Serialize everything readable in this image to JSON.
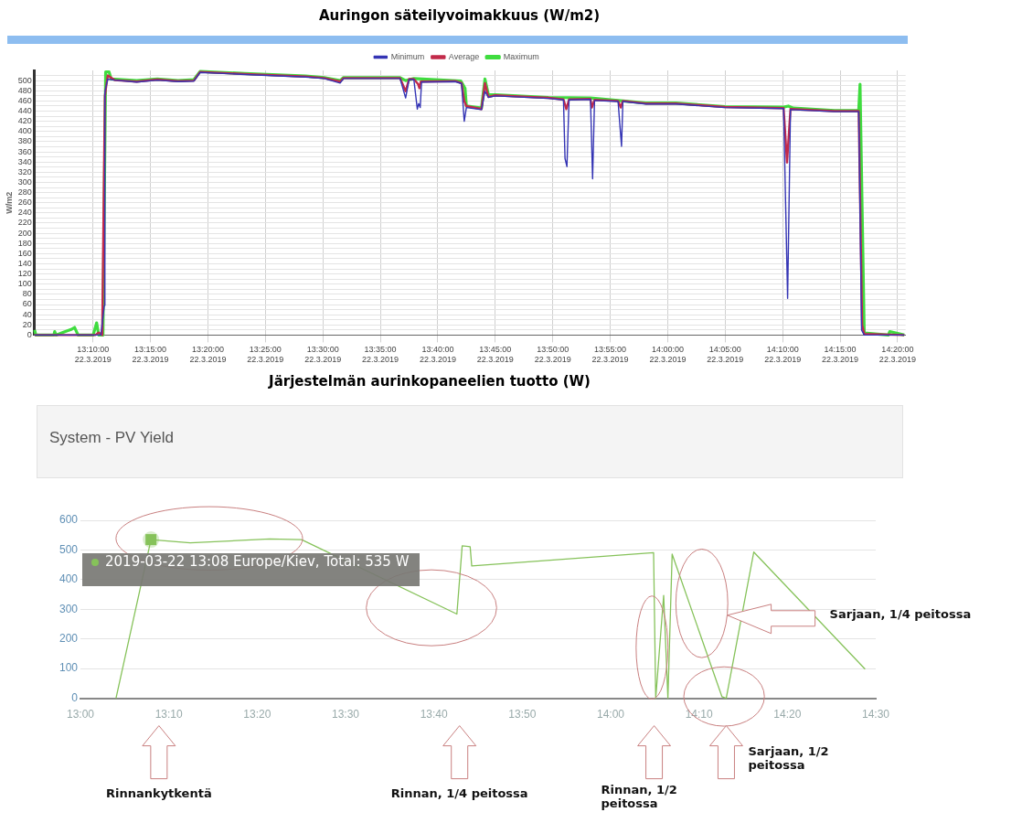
{
  "chart_data": [
    {
      "type": "line",
      "title": "Auringon säteilyvoimakkuus (W/m2)",
      "ylabel": "W/m2",
      "legend": "top",
      "grid": true,
      "marker": "none",
      "xlim": [
        "2019-03-22T13:04:55",
        "2019-03-22T14:20:42"
      ],
      "ylim": [
        0,
        520
      ],
      "xticks": [
        {
          "value": "2019-03-22T13:10",
          "label": "13:10:00\n22.3.2019"
        },
        {
          "value": "2019-03-22T13:15",
          "label": "13:15:00\n22.3.2019"
        },
        {
          "value": "2019-03-22T13:20",
          "label": "13:20:00\n22.3.2019"
        },
        {
          "value": "2019-03-22T13:25",
          "label": "13:25:00\n22.3.2019"
        },
        {
          "value": "2019-03-22T13:30",
          "label": "13:30:00\n22.3.2019"
        },
        {
          "value": "2019-03-22T13:35",
          "label": "13:35:00\n22.3.2019"
        },
        {
          "value": "2019-03-22T13:40",
          "label": "13:40:00\n22.3.2019"
        },
        {
          "value": "2019-03-22T13:45",
          "label": "13:45:00\n22.3.2019"
        },
        {
          "value": "2019-03-22T13:50",
          "label": "13:50:00\n22.3.2019"
        },
        {
          "value": "2019-03-22T13:55",
          "label": "13:55:00\n22.3.2019"
        },
        {
          "value": "2019-03-22T14:00",
          "label": "14:00:00\n22.3.2019"
        },
        {
          "value": "2019-03-22T14:05",
          "label": "14:05:00\n22.3.2019"
        },
        {
          "value": "2019-03-22T14:10",
          "label": "14:10:00\n22.3.2019"
        },
        {
          "value": "2019-03-22T14:15",
          "label": "14:15:00\n22.3.2019"
        },
        {
          "value": "2019-03-22T14:20",
          "label": "14:20:00\n22.3.2019"
        }
      ],
      "yticks": [
        0,
        {
          "value": 10,
          "label": null
        },
        20,
        {
          "value": 30,
          "label": null
        },
        40,
        {
          "value": 50,
          "label": null
        },
        60,
        {
          "value": 70,
          "label": null
        },
        80,
        {
          "value": 90,
          "label": null
        },
        100,
        {
          "value": 110,
          "label": null
        },
        120,
        {
          "value": 130,
          "label": null
        },
        140,
        {
          "value": 150,
          "label": null
        },
        160,
        {
          "value": 170,
          "label": null
        },
        180,
        {
          "value": 190,
          "label": null
        },
        200,
        {
          "value": 210,
          "label": null
        },
        220,
        {
          "value": 230,
          "label": null
        },
        240,
        {
          "value": 250,
          "label": null
        },
        260,
        {
          "value": 270,
          "label": null
        },
        280,
        {
          "value": 290,
          "label": null
        },
        300,
        {
          "value": 310,
          "label": null
        },
        320,
        {
          "value": 330,
          "label": null
        },
        340,
        {
          "value": 350,
          "label": null
        },
        360,
        {
          "value": 370,
          "label": null
        },
        380,
        {
          "value": 390,
          "label": null
        },
        400,
        {
          "value": 410,
          "label": null
        },
        420,
        {
          "value": 430,
          "label": null
        },
        440,
        {
          "value": 450,
          "label": null
        },
        460,
        {
          "value": 470,
          "label": null
        },
        480,
        {
          "value": 490,
          "label": null
        },
        500,
        {
          "value": 510,
          "label": null
        }
      ],
      "series": [
        {
          "name": "Minimum",
          "color": "#3434b4",
          "x": [
            "2019-03-22T13:04:55",
            "2019-03-22T13:10:41",
            "2019-03-22T13:10:59",
            "2019-03-22T13:11:02",
            "2019-03-22T13:11:17",
            "2019-03-22T13:11:53",
            "2019-03-22T13:13:48",
            "2019-03-22T13:15:36",
            "2019-03-22T13:17:24",
            "2019-03-22T13:18:47",
            "2019-03-22T13:19:19",
            "2019-03-22T13:23:13",
            "2019-03-22T13:28:30",
            "2019-03-22T13:30:07",
            "2019-03-22T13:31:30",
            "2019-03-22T13:31:48",
            "2019-03-22T13:36:43",
            "2019-03-22T13:37:12",
            "2019-03-22T13:37:30",
            "2019-03-22T13:37:55",
            "2019-03-22T13:38:13",
            "2019-03-22T13:38:20",
            "2019-03-22T13:38:28",
            "2019-03-22T13:38:35",
            "2019-03-22T13:41:31",
            "2019-03-22T13:42:04",
            "2019-03-22T13:42:18",
            "2019-03-22T13:42:29",
            "2019-03-22T13:43:48",
            "2019-03-22T13:44:06",
            "2019-03-22T13:44:24",
            "2019-03-22T13:45:00",
            "2019-03-22T13:49:37",
            "2019-03-22T13:50:56",
            "2019-03-22T13:51:04",
            "2019-03-22T13:51:14",
            "2019-03-22T13:51:25",
            "2019-03-22T13:53:17",
            "2019-03-22T13:53:28",
            "2019-03-22T13:53:38",
            "2019-03-22T13:55:41",
            "2019-03-22T13:55:59",
            "2019-03-22T13:56:06",
            "2019-03-22T13:58:05",
            "2019-03-22T14:00:43",
            "2019-03-22T14:04:59",
            "2019-03-22T14:10:05",
            "2019-03-22T14:10:26",
            "2019-03-22T14:10:41",
            "2019-03-22T14:14:31",
            "2019-03-22T14:16:37",
            "2019-03-22T14:16:52",
            "2019-03-22T14:17:06",
            "2019-03-22T14:20:35"
          ],
          "values": [
            0,
            0,
            58,
            477,
            503,
            501,
            497,
            501,
            498,
            499,
            516,
            512,
            507,
            504,
            495,
            504,
            504,
            466,
            502,
            502,
            444,
            455,
            447,
            497,
            498,
            494,
            420,
            447,
            443,
            479,
            467,
            470,
            465,
            462,
            347,
            331,
            462,
            463,
            307,
            461,
            459,
            371,
            459,
            454,
            454,
            447,
            445,
            72,
            443,
            439,
            439,
            10,
            0,
            0
          ]
        },
        {
          "name": "Maximum",
          "color": "#3fdc3f",
          "x": [
            "2019-03-22T13:04:55",
            "2019-03-22T13:05:02",
            "2019-03-22T13:06:36",
            "2019-03-22T13:06:40",
            "2019-03-22T13:06:47",
            "2019-03-22T13:07:23",
            "2019-03-22T13:08:06",
            "2019-03-22T13:08:24",
            "2019-03-22T13:08:42",
            "2019-03-22T13:10:01",
            "2019-03-22T13:10:19",
            "2019-03-22T13:10:30",
            "2019-03-22T13:10:52",
            "2019-03-22T13:11:06",
            "2019-03-22T13:11:24",
            "2019-03-22T13:11:35",
            "2019-03-22T13:13:48",
            "2019-03-22T13:15:36",
            "2019-03-22T13:17:24",
            "2019-03-22T13:18:47",
            "2019-03-22T13:19:19",
            "2019-03-22T13:23:13",
            "2019-03-22T13:28:30",
            "2019-03-22T13:30:07",
            "2019-03-22T13:31:30",
            "2019-03-22T13:31:48",
            "2019-03-22T13:36:43",
            "2019-03-22T13:37:12",
            "2019-03-22T13:37:55",
            "2019-03-22T13:42:00",
            "2019-03-22T13:42:22",
            "2019-03-22T13:42:29",
            "2019-03-22T13:43:48",
            "2019-03-22T13:44:06",
            "2019-03-22T13:44:24",
            "2019-03-22T13:45:00",
            "2019-03-22T13:49:37",
            "2019-03-22T13:53:17",
            "2019-03-22T13:58:05",
            "2019-03-22T14:00:43",
            "2019-03-22T14:04:59",
            "2019-03-22T14:10:05",
            "2019-03-22T14:10:30",
            "2019-03-22T14:10:55",
            "2019-03-22T14:14:31",
            "2019-03-22T14:16:37",
            "2019-03-22T14:16:44",
            "2019-03-22T14:17:06",
            "2019-03-22T14:19:12",
            "2019-03-22T14:19:19",
            "2019-03-22T14:20:35"
          ],
          "values": [
            10,
            0,
            0,
            7,
            0,
            5,
            11,
            15,
            0,
            0,
            24,
            0,
            0,
            517,
            517,
            503,
            500,
            503,
            500,
            502,
            518,
            514,
            509,
            506,
            500,
            506,
            506,
            500,
            504,
            499,
            485,
            450,
            446,
            503,
            472,
            472,
            467,
            466,
            456,
            456,
            449,
            448,
            450,
            446,
            441,
            441,
            493,
            4,
            0,
            7,
            0
          ]
        },
        {
          "name": "Average",
          "color": "#c22a4a",
          "x": [
            "2019-03-22T13:04:55",
            "2019-03-22T13:10:12",
            "2019-03-22T13:10:30",
            "2019-03-22T13:10:48",
            "2019-03-22T13:11:02",
            "2019-03-22T13:11:17",
            "2019-03-22T13:11:53",
            "2019-03-22T13:13:48",
            "2019-03-22T13:15:36",
            "2019-03-22T13:17:24",
            "2019-03-22T13:18:47",
            "2019-03-22T13:19:19",
            "2019-03-22T13:23:13",
            "2019-03-22T13:28:30",
            "2019-03-22T13:30:07",
            "2019-03-22T13:31:30",
            "2019-03-22T13:31:48",
            "2019-03-22T13:36:43",
            "2019-03-22T13:37:12",
            "2019-03-22T13:37:30",
            "2019-03-22T13:37:55",
            "2019-03-22T13:38:17",
            "2019-03-22T13:38:24",
            "2019-03-22T13:38:31",
            "2019-03-22T13:41:31",
            "2019-03-22T13:42:04",
            "2019-03-22T13:42:18",
            "2019-03-22T13:42:29",
            "2019-03-22T13:43:48",
            "2019-03-22T13:44:06",
            "2019-03-22T13:44:24",
            "2019-03-22T13:45:00",
            "2019-03-22T13:49:37",
            "2019-03-22T13:50:56",
            "2019-03-22T13:51:11",
            "2019-03-22T13:51:25",
            "2019-03-22T13:53:17",
            "2019-03-22T13:53:24",
            "2019-03-22T13:53:38",
            "2019-03-22T13:55:41",
            "2019-03-22T13:55:55",
            "2019-03-22T13:56:06",
            "2019-03-22T13:58:05",
            "2019-03-22T14:00:43",
            "2019-03-22T14:04:59",
            "2019-03-22T14:10:05",
            "2019-03-22T14:10:23",
            "2019-03-22T14:10:41",
            "2019-03-22T14:14:31",
            "2019-03-22T14:16:37",
            "2019-03-22T14:16:55",
            "2019-03-22T14:17:06",
            "2019-03-22T14:20:35"
          ],
          "values": [
            0,
            0,
            5,
            0,
            470,
            510,
            501,
            498,
            502,
            499,
            500,
            517,
            513,
            508,
            505,
            498,
            505,
            505,
            479,
            503,
            503,
            493,
            485,
            498,
            499,
            495,
            460,
            450,
            444,
            495,
            468,
            471,
            466,
            463,
            444,
            463,
            464,
            447,
            462,
            460,
            447,
            460,
            455,
            455,
            448,
            446,
            339,
            444,
            440,
            440,
            20,
            2,
            0
          ]
        }
      ]
    },
    {
      "type": "line",
      "title": "Järjestelmän aurinkopaneelien tuotto (W)",
      "subtitle": "System - PV Yield",
      "grid": "y",
      "marker": "none",
      "xlim": [
        13,
        14.5
      ],
      "ylim": [
        0,
        600
      ],
      "xticks": [
        {
          "value": 13,
          "label": "13:00"
        },
        {
          "value": 13.1667,
          "label": "13:10"
        },
        {
          "value": 13.3333,
          "label": "13:20"
        },
        {
          "value": 13.5,
          "label": "13:30"
        },
        {
          "value": 13.6667,
          "label": "13:40"
        },
        {
          "value": 13.8333,
          "label": "13:50"
        },
        {
          "value": 14,
          "label": "14:00"
        },
        {
          "value": 14.1667,
          "label": "14:10"
        },
        {
          "value": 14.3333,
          "label": "14:20"
        },
        {
          "value": 14.5,
          "label": "14:30"
        }
      ],
      "yticks": [
        0,
        100,
        200,
        300,
        400,
        500,
        600
      ],
      "series": [
        {
          "color": "#86c25a",
          "x": [
            13.067,
            13.133,
            13.207,
            13.357,
            13.417,
            13.71,
            13.72,
            13.735,
            13.738,
            14.081,
            14.085,
            14.1,
            14.108,
            14.116,
            14.21,
            14.218,
            14.27,
            14.48
          ],
          "values": [
            0,
            535,
            524,
            537,
            535,
            284,
            514,
            511,
            446,
            491,
            0,
            347,
            0,
            486,
            5,
            0,
            493,
            98
          ]
        }
      ],
      "annotations": [
        {
          "text": "2019-03-22 13:08 Europe/Kiev, Total: 535 W",
          "x": 13.133,
          "y": 535
        },
        "Rinnankytkentä",
        "Rinnan, 1/4 peitossa",
        "Rinnan, 1/2 peitossa",
        "Sarjaan, 1/2 peitossa",
        "Sarjaan, 1/4 peitossa"
      ]
    }
  ]
}
